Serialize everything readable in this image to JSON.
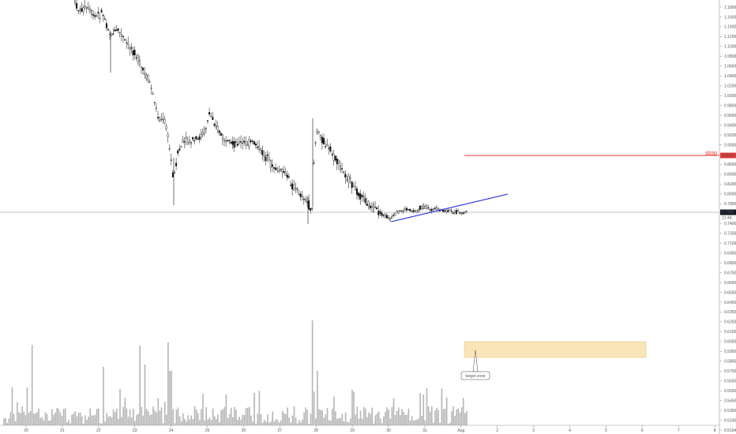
{
  "chart_data": {
    "type": "candlestick",
    "price_axis": {
      "ticks": [
        "1.1800",
        "1.1600",
        "1.1400",
        "1.1200",
        "1.1000",
        "1.0800",
        "1.0600",
        "1.0400",
        "1.0200",
        "1.0000",
        "0.9800",
        "0.9600",
        "0.9400",
        "0.9200",
        "0.9000",
        "0.8800",
        "0.8600",
        "0.8400",
        "0.8200",
        "0.8000",
        "0.7800",
        "0.7600",
        "0.7400",
        "0.7250",
        "0.7100",
        "0.6950",
        "0.6850",
        "0.6750",
        "0.6650",
        "0.6550",
        "0.6450",
        "0.6350",
        "0.6250",
        "0.6150",
        "0.6050",
        "0.5950",
        "0.5850",
        "0.5750",
        "0.5650",
        "0.5550",
        "0.5450",
        "0.5350",
        "0.5240",
        "0.5164"
      ]
    },
    "date_axis": {
      "labels": [
        "20",
        "21",
        "22",
        "23",
        "24",
        "25",
        "26",
        "27",
        "28",
        "29",
        "30",
        "31",
        "Aug",
        "2",
        "3",
        "4",
        "5",
        "6",
        "7",
        "8"
      ]
    },
    "current_price": {
      "value": "0.7969",
      "countdown": "21:44",
      "color": "#131722"
    },
    "stop": {
      "label": "stop",
      "value": "0.8600",
      "color": "#e53935"
    },
    "target_zone": {
      "label": "target zone",
      "color": "#f7d48a"
    },
    "trendline_color": "#1f2ee0",
    "volume_color": "#b5b5b5",
    "candle_color": "#111111"
  }
}
